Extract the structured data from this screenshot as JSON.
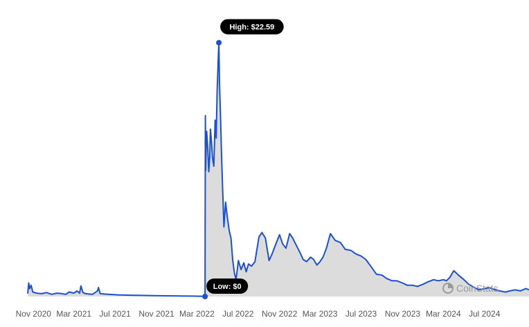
{
  "chart_data": {
    "type": "area",
    "xlabel": "",
    "ylabel": "",
    "x_ticks": [
      "Nov 2020",
      "Mar 2021",
      "Jul 2021",
      "Nov 2021",
      "Mar 2022",
      "Jul 2022",
      "Nov 2022",
      "Mar 2023",
      "Jul 2023",
      "Nov 2023",
      "Mar 2024",
      "Jul 2024"
    ],
    "xlim": [
      "2020-10-15",
      "2024-11-10"
    ],
    "ylim": [
      0,
      23
    ],
    "grid": false,
    "legend": "none",
    "colors": {
      "line": "#1a4fd6",
      "fill": "#dcdcdc",
      "callout": "#000000"
    },
    "annotations": {
      "high": {
        "label": "High: $22.59",
        "x": "2022-05-05",
        "y": 22.59
      },
      "low": {
        "label": "Low: $0",
        "x": "2022-03-25",
        "y": 0
      }
    },
    "watermark": "CoinStats",
    "series": [
      {
        "x": [
          "2020-10-15",
          "2020-10-18",
          "2020-10-21",
          "2020-10-25",
          "2020-10-30",
          "2020-11-10",
          "2020-11-25",
          "2020-12-10",
          "2020-12-25",
          "2021-01-10",
          "2021-01-25",
          "2021-02-05",
          "2021-02-15",
          "2021-03-01",
          "2021-03-10",
          "2021-03-18",
          "2021-03-22",
          "2021-03-28",
          "2021-04-05",
          "2021-04-25",
          "2021-05-10",
          "2021-05-13",
          "2021-05-18",
          "2021-06-10",
          "2021-07-10",
          "2021-08-15",
          "2021-09-20",
          "2021-10-25",
          "2021-12-01",
          "2022-01-10",
          "2022-02-15",
          "2022-03-24",
          "2022-03-25",
          "2022-03-26",
          "2022-03-27",
          "2022-03-28",
          "2022-03-30",
          "2022-04-02",
          "2022-04-05",
          "2022-04-08",
          "2022-04-10",
          "2022-04-13",
          "2022-04-16",
          "2022-04-20",
          "2022-04-24",
          "2022-04-27",
          "2022-04-30",
          "2022-05-03",
          "2022-05-05",
          "2022-05-07",
          "2022-05-10",
          "2022-05-13",
          "2022-05-16",
          "2022-05-20",
          "2022-05-25",
          "2022-05-30",
          "2022-06-05",
          "2022-06-10",
          "2022-06-15",
          "2022-06-20",
          "2022-06-25",
          "2022-07-02",
          "2022-07-10",
          "2022-07-18",
          "2022-07-25",
          "2022-08-01",
          "2022-08-10",
          "2022-08-20",
          "2022-09-01",
          "2022-09-10",
          "2022-09-20",
          "2022-10-01",
          "2022-10-10",
          "2022-10-20",
          "2022-11-01",
          "2022-11-10",
          "2022-11-20",
          "2022-12-01",
          "2022-12-10",
          "2022-12-20",
          "2023-01-01",
          "2023-01-10",
          "2023-01-20",
          "2023-02-01",
          "2023-02-10",
          "2023-02-20",
          "2023-03-01",
          "2023-03-10",
          "2023-03-20",
          "2023-04-01",
          "2023-04-15",
          "2023-05-01",
          "2023-05-15",
          "2023-06-01",
          "2023-06-15",
          "2023-07-01",
          "2023-07-15",
          "2023-08-01",
          "2023-08-15",
          "2023-09-01",
          "2023-09-15",
          "2023-10-01",
          "2023-10-15",
          "2023-11-01",
          "2023-11-15",
          "2023-12-01",
          "2023-12-15",
          "2024-01-01",
          "2024-01-15",
          "2024-02-01",
          "2024-02-15",
          "2024-03-01",
          "2024-03-10",
          "2024-03-20",
          "2024-04-01",
          "2024-04-15",
          "2024-05-01",
          "2024-05-15",
          "2024-06-01",
          "2024-06-15",
          "2024-07-01",
          "2024-07-15",
          "2024-08-01",
          "2024-08-15",
          "2024-09-01",
          "2024-09-15",
          "2024-10-01",
          "2024-10-15",
          "2024-11-01",
          "2024-11-10"
        ],
        "y": [
          0.25,
          1.2,
          0.7,
          1.0,
          0.4,
          0.3,
          0.25,
          0.35,
          0.2,
          0.3,
          0.25,
          0.2,
          0.4,
          0.3,
          0.5,
          0.3,
          0.95,
          0.35,
          0.25,
          0.2,
          0.5,
          0.8,
          0.25,
          0.2,
          0.15,
          0.12,
          0.1,
          0.08,
          0.06,
          0.05,
          0.04,
          0.02,
          0,
          16.1,
          11.2,
          13.1,
          14.7,
          13.2,
          11.1,
          12.5,
          14.9,
          13.8,
          12.4,
          11.6,
          15.7,
          14.1,
          18.3,
          21.0,
          22.59,
          19.0,
          16.0,
          12.5,
          9.8,
          6.2,
          8.4,
          7.1,
          5.8,
          5.2,
          3.3,
          2.1,
          1.5,
          3.2,
          2.4,
          3.0,
          2.2,
          2.9,
          2.7,
          3.1,
          5.3,
          5.7,
          5.2,
          3.2,
          3.8,
          4.6,
          5.5,
          4.7,
          4.3,
          5.6,
          5.2,
          4.6,
          3.9,
          3.3,
          3.1,
          3.5,
          3.3,
          2.8,
          3.1,
          3.5,
          4.3,
          5.6,
          5.0,
          4.8,
          4.2,
          4.1,
          3.8,
          3.6,
          3.3,
          2.6,
          2.0,
          1.9,
          1.6,
          1.4,
          1.4,
          1.2,
          1.0,
          1.0,
          0.9,
          1.1,
          1.3,
          1.5,
          1.4,
          1.5,
          1.4,
          1.7,
          2.3,
          1.9,
          1.5,
          1.1,
          0.8,
          0.6,
          0.7,
          0.8,
          0.6,
          0.5,
          0.4,
          0.5,
          0.6,
          0.5,
          0.7,
          0.6
        ]
      }
    ]
  }
}
